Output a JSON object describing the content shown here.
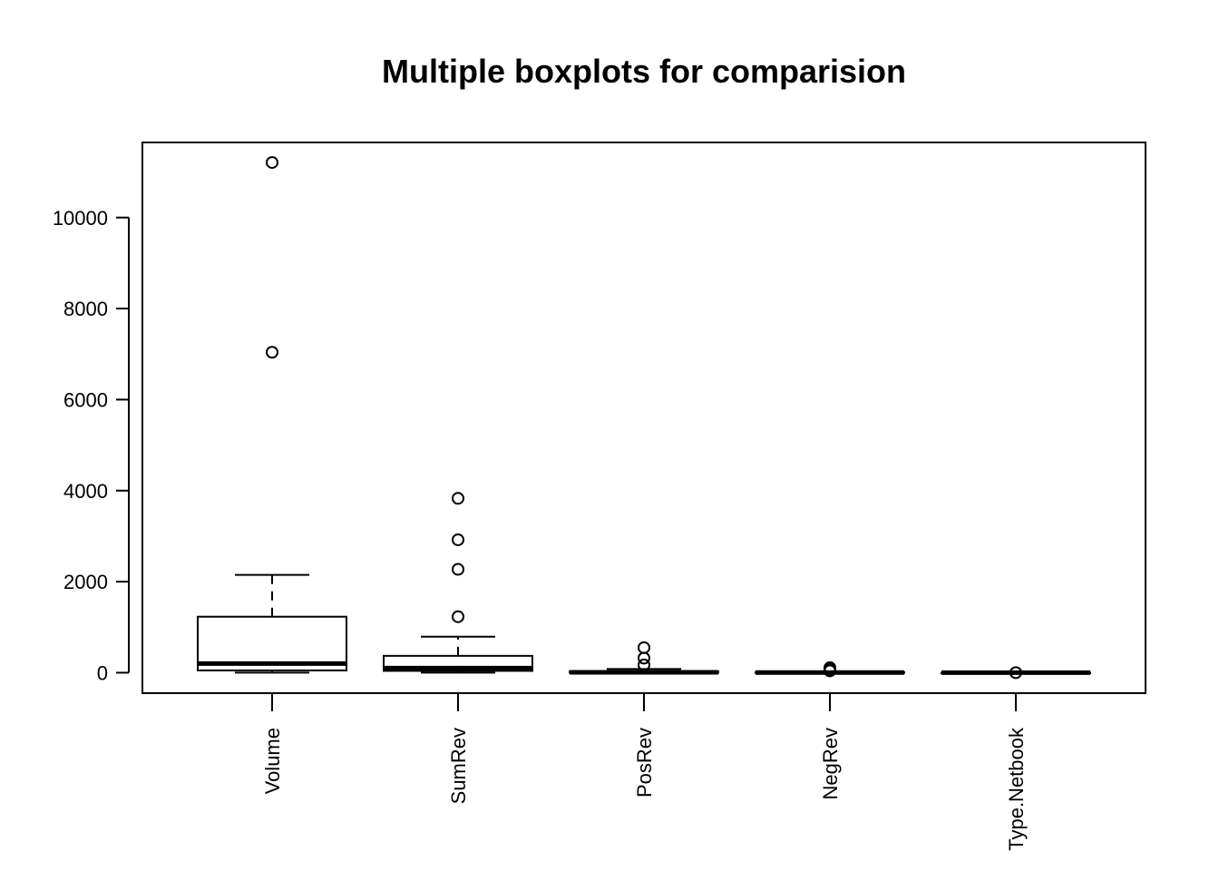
{
  "chart_data": {
    "type": "boxplot",
    "title": "Multiple boxplots for comparision",
    "xlabel": "",
    "ylabel": "",
    "ylim": [
      -450,
      11650
    ],
    "yticks": [
      0,
      2000,
      4000,
      6000,
      8000,
      10000
    ],
    "categories": [
      "Volume",
      "SumRev",
      "PosRev",
      "NegRev",
      "Type.Netbook"
    ],
    "boxes": [
      {
        "name": "Volume",
        "whisker_low": 0,
        "q1": 50,
        "median": 200,
        "q3": 1230,
        "whisker_high": 2150,
        "outliers": [
          7040,
          11210
        ]
      },
      {
        "name": "SumRev",
        "whisker_low": 0,
        "q1": 40,
        "median": 100,
        "q3": 370,
        "whisker_high": 790,
        "outliers": [
          1230,
          2270,
          2920,
          3830
        ]
      },
      {
        "name": "PosRev",
        "whisker_low": 0,
        "q1": 3,
        "median": 8,
        "q3": 25,
        "whisker_high": 80,
        "outliers": [
          170,
          320,
          550
        ]
      },
      {
        "name": "NegRev",
        "whisker_low": 0,
        "q1": 1,
        "median": 3,
        "q3": 8,
        "whisker_high": 20,
        "outliers": [
          40,
          70,
          110
        ]
      },
      {
        "name": "Type.Netbook",
        "whisker_low": 0,
        "q1": 0,
        "median": 0,
        "q3": 0,
        "whisker_high": 0,
        "outliers": [
          1
        ]
      }
    ],
    "grid": false,
    "legend": "none"
  }
}
